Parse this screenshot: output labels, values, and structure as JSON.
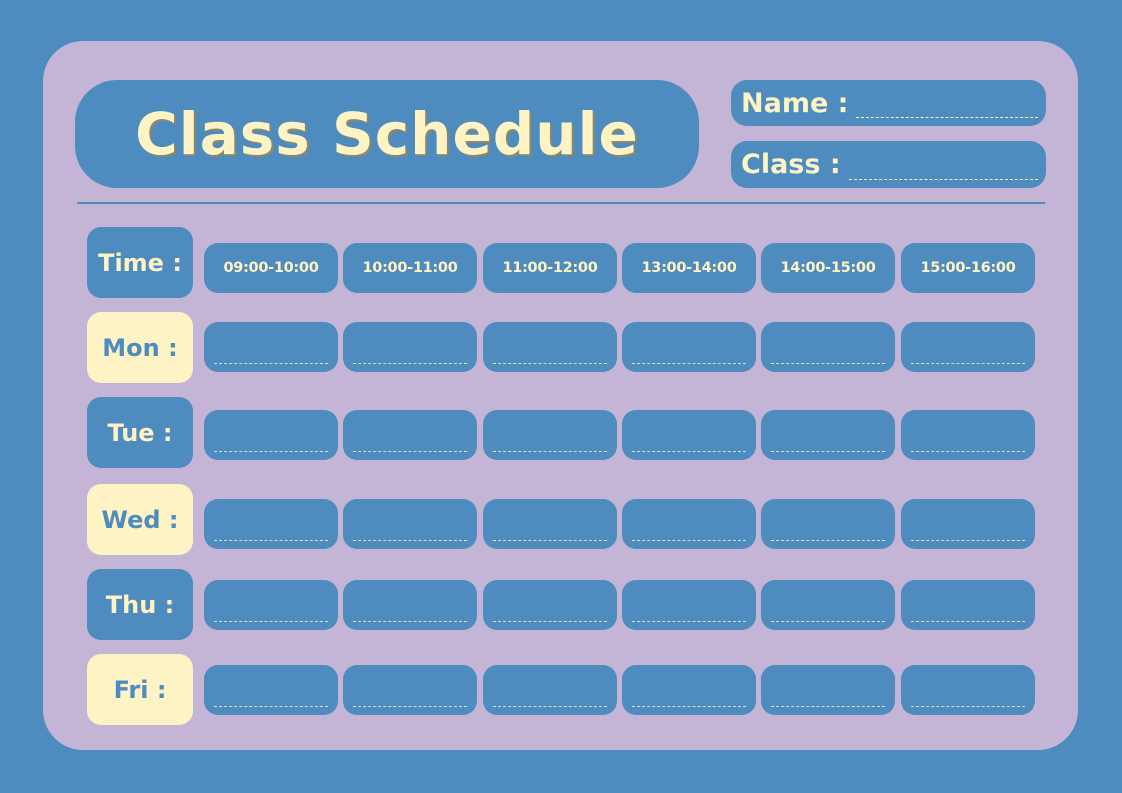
{
  "title": "Class Schedule",
  "fields": {
    "name_label": "Name :",
    "class_label": "Class :"
  },
  "time_label": "Time :",
  "times": [
    "09:00-10:00",
    "10:00-11:00",
    "11:00-12:00",
    "13:00-14:00",
    "14:00-15:00",
    "15:00-16:00"
  ],
  "days": [
    {
      "label": "Mon :",
      "style": "cream"
    },
    {
      "label": "Tue :",
      "style": "blue"
    },
    {
      "label": "Wed :",
      "style": "cream"
    },
    {
      "label": "Thu :",
      "style": "blue"
    },
    {
      "label": "Fri :",
      "style": "cream"
    }
  ],
  "colors": {
    "background": "#4e8bbf",
    "card": "#c4b5d6",
    "cream": "#fdf3c4"
  }
}
